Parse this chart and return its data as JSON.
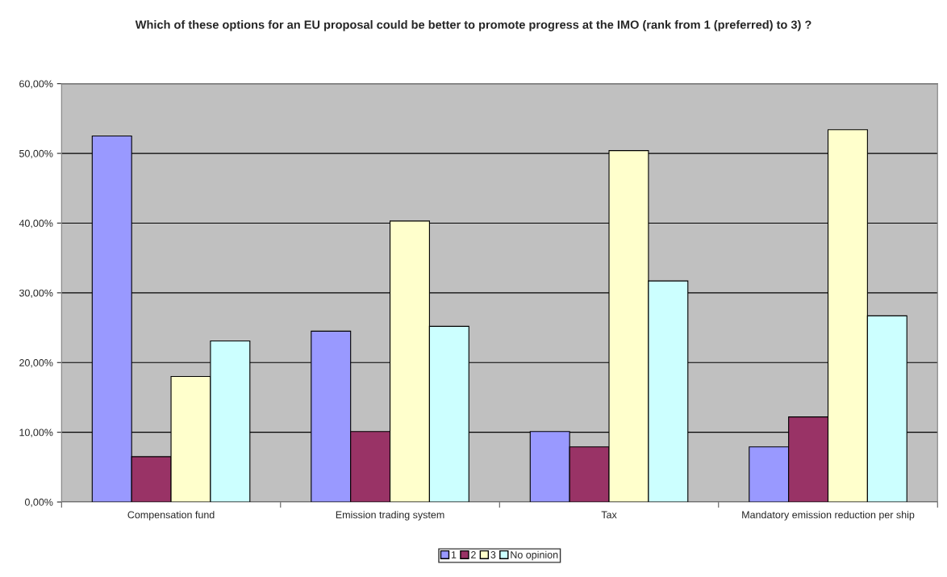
{
  "chart_data": {
    "type": "bar",
    "title": "Which of these options for an EU proposal could be better to promote progress at the IMO (rank from 1 (preferred) to 3) ?",
    "categories": [
      "Compensation fund",
      "Emission trading system",
      "Tax",
      "Mandatory emission reduction per ship"
    ],
    "series": [
      {
        "name": "1",
        "color": "#9999ff",
        "values": [
          52.5,
          24.5,
          10.1,
          7.9
        ]
      },
      {
        "name": "2",
        "color": "#993366",
        "values": [
          6.5,
          10.1,
          7.9,
          12.2
        ]
      },
      {
        "name": "3",
        "color": "#ffffcc",
        "values": [
          18.0,
          40.3,
          50.4,
          53.4
        ]
      },
      {
        "name": "No opinion",
        "color": "#ccffff",
        "values": [
          23.1,
          25.2,
          31.7,
          26.7
        ]
      }
    ],
    "ylim": [
      0,
      60
    ],
    "yticks": [
      {
        "value": 0,
        "label": "0,00%"
      },
      {
        "value": 10,
        "label": "10,00%"
      },
      {
        "value": 20,
        "label": "20,00%"
      },
      {
        "value": 30,
        "label": "30,00%"
      },
      {
        "value": 40,
        "label": "40,00%"
      },
      {
        "value": 50,
        "label": "50,00%"
      },
      {
        "value": 60,
        "label": "60,00%"
      }
    ],
    "grid": "y",
    "legend": "bottom"
  }
}
